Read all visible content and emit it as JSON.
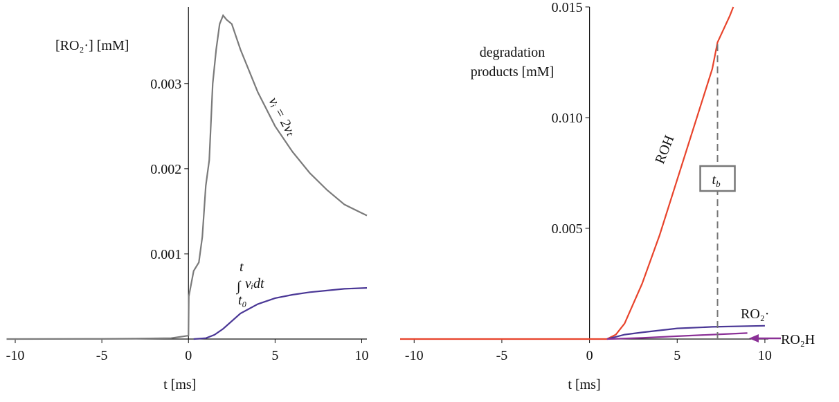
{
  "chart_data": [
    {
      "type": "line",
      "ylabel": "[RO₂·] [mM]",
      "xlabel": "t [ms]",
      "xlim": [
        -10.5,
        10.3
      ],
      "ylim": [
        0,
        0.0039
      ],
      "xticks": [
        -10,
        -5,
        0,
        5,
        10
      ],
      "yticks": [
        0.001,
        0.002,
        0.003
      ],
      "series": [
        {
          "color": "#7a7a7a",
          "x": [
            -10.5,
            -5,
            -3,
            -1,
            0,
            0.02,
            0.3,
            0.6,
            0.8,
            1.0,
            1.2,
            1.4,
            1.6,
            1.8,
            2.0,
            2.2,
            2.5,
            3,
            4,
            5,
            6,
            7,
            8,
            9,
            10,
            10.3
          ],
          "values": [
            0,
            2e-06,
            5e-06,
            1e-05,
            4e-05,
            0.0005,
            0.0008,
            0.0009,
            0.0012,
            0.0018,
            0.0021,
            0.003,
            0.0034,
            0.0037,
            0.0038,
            0.00375,
            0.0037,
            0.0034,
            0.0029,
            0.0025,
            0.0022,
            0.00195,
            0.00175,
            0.00158,
            0.00148,
            0.00145
          ]
        },
        {
          "color": "#4a3796",
          "x": [
            0.3,
            1,
            1.5,
            2,
            3,
            4,
            5,
            6,
            7,
            8,
            9,
            10.3
          ],
          "values": [
            0,
            1e-05,
            5e-05,
            0.00012,
            0.0003,
            0.00041,
            0.00048,
            0.00052,
            0.00055,
            0.00057,
            0.00059,
            0.0006
          ]
        }
      ],
      "annotations": {
        "rate": "vᵢ = 2vₜ",
        "integral": {
          "symbol": "∫",
          "body": "vᵢdt",
          "upper": "t",
          "lower": "t₀"
        }
      }
    },
    {
      "type": "line",
      "ylabel": [
        "degradation",
        "products [mM]"
      ],
      "xlabel": "t [ms]",
      "xlim": [
        -10.8,
        10.2
      ],
      "ylim": [
        0,
        0.015
      ],
      "xticks": [
        -10,
        -5,
        0,
        5,
        10
      ],
      "yticks": [
        0.005,
        {
          "value": 0.01,
          "label": "0.010"
        },
        0.015
      ],
      "series": [
        {
          "name": "ROH",
          "color": "#e8432b",
          "x": [
            -10.8,
            1,
            1.5,
            2,
            3,
            4,
            5,
            6,
            7,
            7.3,
            8,
            8.2
          ],
          "values": [
            0,
            0,
            0.0002,
            0.0007,
            0.0025,
            0.0047,
            0.0072,
            0.0097,
            0.0122,
            0.0134,
            0.0146,
            0.015
          ]
        },
        {
          "name": "RO₂·",
          "color": "#4a3796",
          "x": [
            1,
            2,
            3,
            5,
            7,
            10
          ],
          "values": [
            0,
            0.0002,
            0.0003,
            0.00048,
            0.00055,
            0.0006
          ]
        },
        {
          "name": "RO₂H",
          "color": "#8a3096",
          "x": [
            1,
            3,
            5,
            7,
            9
          ],
          "values": [
            0,
            5e-05,
            0.00013,
            0.0002,
            0.00027
          ]
        }
      ],
      "marker": {
        "x": 7.3,
        "y": 0.0134,
        "label": "t",
        "label_sub": "b"
      }
    }
  ]
}
